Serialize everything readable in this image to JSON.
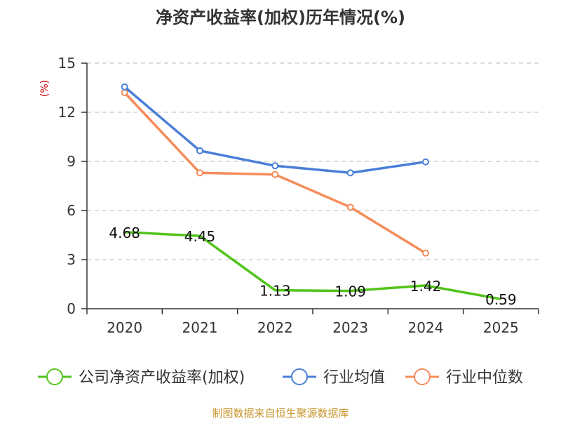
{
  "chart_data": {
    "type": "line",
    "title": "净资产收益率(加权)历年情况(%)",
    "ylabel": "(%)",
    "xlabel": "",
    "categories": [
      "2020",
      "2021",
      "2022",
      "2023",
      "2024",
      "2025"
    ],
    "ylim": [
      0,
      15
    ],
    "yticks": [
      "0",
      "3",
      "6",
      "9",
      "12",
      "15"
    ],
    "grid": true,
    "legend_position": "bottom",
    "series": [
      {
        "name": "公司净资产收益率(加权)",
        "color": "#52c41a",
        "values": [
          4.68,
          4.45,
          1.13,
          1.09,
          1.42,
          0.59
        ],
        "labels": [
          "4.68",
          "4.45",
          "1.13",
          "1.09",
          "1.42",
          "0.59"
        ],
        "show_labels": true
      },
      {
        "name": "行业均值",
        "color": "#4a7fd8",
        "values": [
          13.55,
          9.65,
          8.73,
          8.3,
          8.97,
          null
        ],
        "show_labels": false
      },
      {
        "name": "行业中位数",
        "color": "#f58c5a",
        "values": [
          13.2,
          8.3,
          8.2,
          6.2,
          3.4,
          null
        ],
        "show_labels": false
      }
    ],
    "source": "制图数据来自恒生聚源数据库"
  }
}
